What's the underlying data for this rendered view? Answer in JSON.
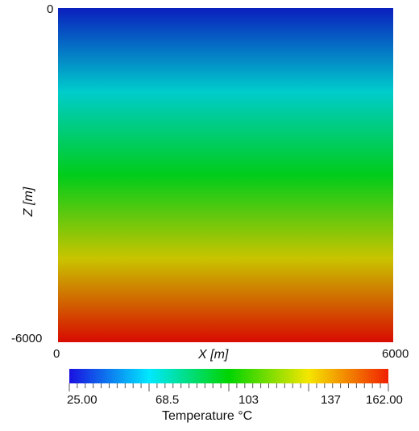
{
  "chart_data": {
    "type": "heatmap",
    "xlabel": "X [m]",
    "ylabel": "Z [m]",
    "xlim": [
      0,
      6000
    ],
    "ylim": [
      -6000,
      0
    ],
    "x_ticks": [
      "0",
      "6000"
    ],
    "y_ticks": [
      "0",
      "-6000"
    ],
    "field": "Temperature increasing linearly with depth; uniform along X",
    "values_at_depth": [
      {
        "z": 0,
        "temperature": 25.0
      },
      {
        "z": -6000,
        "temperature": 162.0
      }
    ],
    "colorbar": {
      "title": "Temperature °C",
      "min": 25.0,
      "max": 162.0,
      "tick_labels": [
        "25.00",
        "68.5",
        "103",
        "137",
        "162.00"
      ],
      "colors": [
        "#1a10e0",
        "#00e8ff",
        "#00d400",
        "#f5e600",
        "#f02000"
      ]
    },
    "field_colors": [
      "#0a1fbe",
      "#00cccc",
      "#00cc1a",
      "#c9c400",
      "#d80a00"
    ]
  }
}
